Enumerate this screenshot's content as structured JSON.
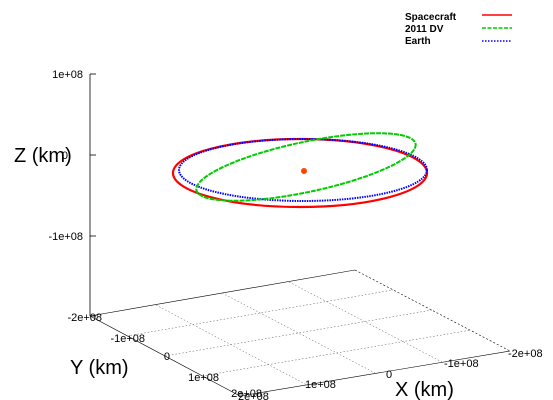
{
  "chart_data": {
    "type": "line",
    "subtype": "3d-orbit",
    "title": "",
    "xlabel": "X (km)",
    "ylabel": "Y (km)",
    "zlabel": "Z (km)",
    "x_ticks": [
      "-2e+08",
      "-1e+08",
      "0",
      "1e+08",
      "2e+08"
    ],
    "y_ticks": [
      "-2e+08",
      "-1e+08",
      "0",
      "1e+08",
      "2e+08"
    ],
    "z_ticks": [
      "1e+08",
      "0",
      "-1e+08",
      "-2e+08"
    ],
    "xlim": [
      -200000000,
      200000000
    ],
    "ylim": [
      -200000000,
      200000000
    ],
    "zlim": [
      -200000000,
      100000000
    ],
    "grid": true,
    "legend_position": "top-right",
    "series": [
      {
        "name": "Spacecraft",
        "color": "#ff0000",
        "dash": "solid",
        "orbit": {
          "semi_major_axis_km": 150000000,
          "eccentricity": 0.05,
          "inclination_deg": 0.5
        }
      },
      {
        "name": "2011 DV",
        "color": "#00cc00",
        "dash": "dashed",
        "orbit": {
          "semi_major_axis_km": 140000000,
          "eccentricity": 0.12,
          "inclination_deg": 10
        }
      },
      {
        "name": "Earth",
        "color": "#0000ff",
        "dash": "dotted",
        "orbit": {
          "semi_major_axis_km": 149600000,
          "eccentricity": 0.017,
          "inclination_deg": 0
        }
      }
    ],
    "central_body": {
      "color": "#ff4400",
      "x": 0,
      "y": 0,
      "z": 0
    }
  }
}
